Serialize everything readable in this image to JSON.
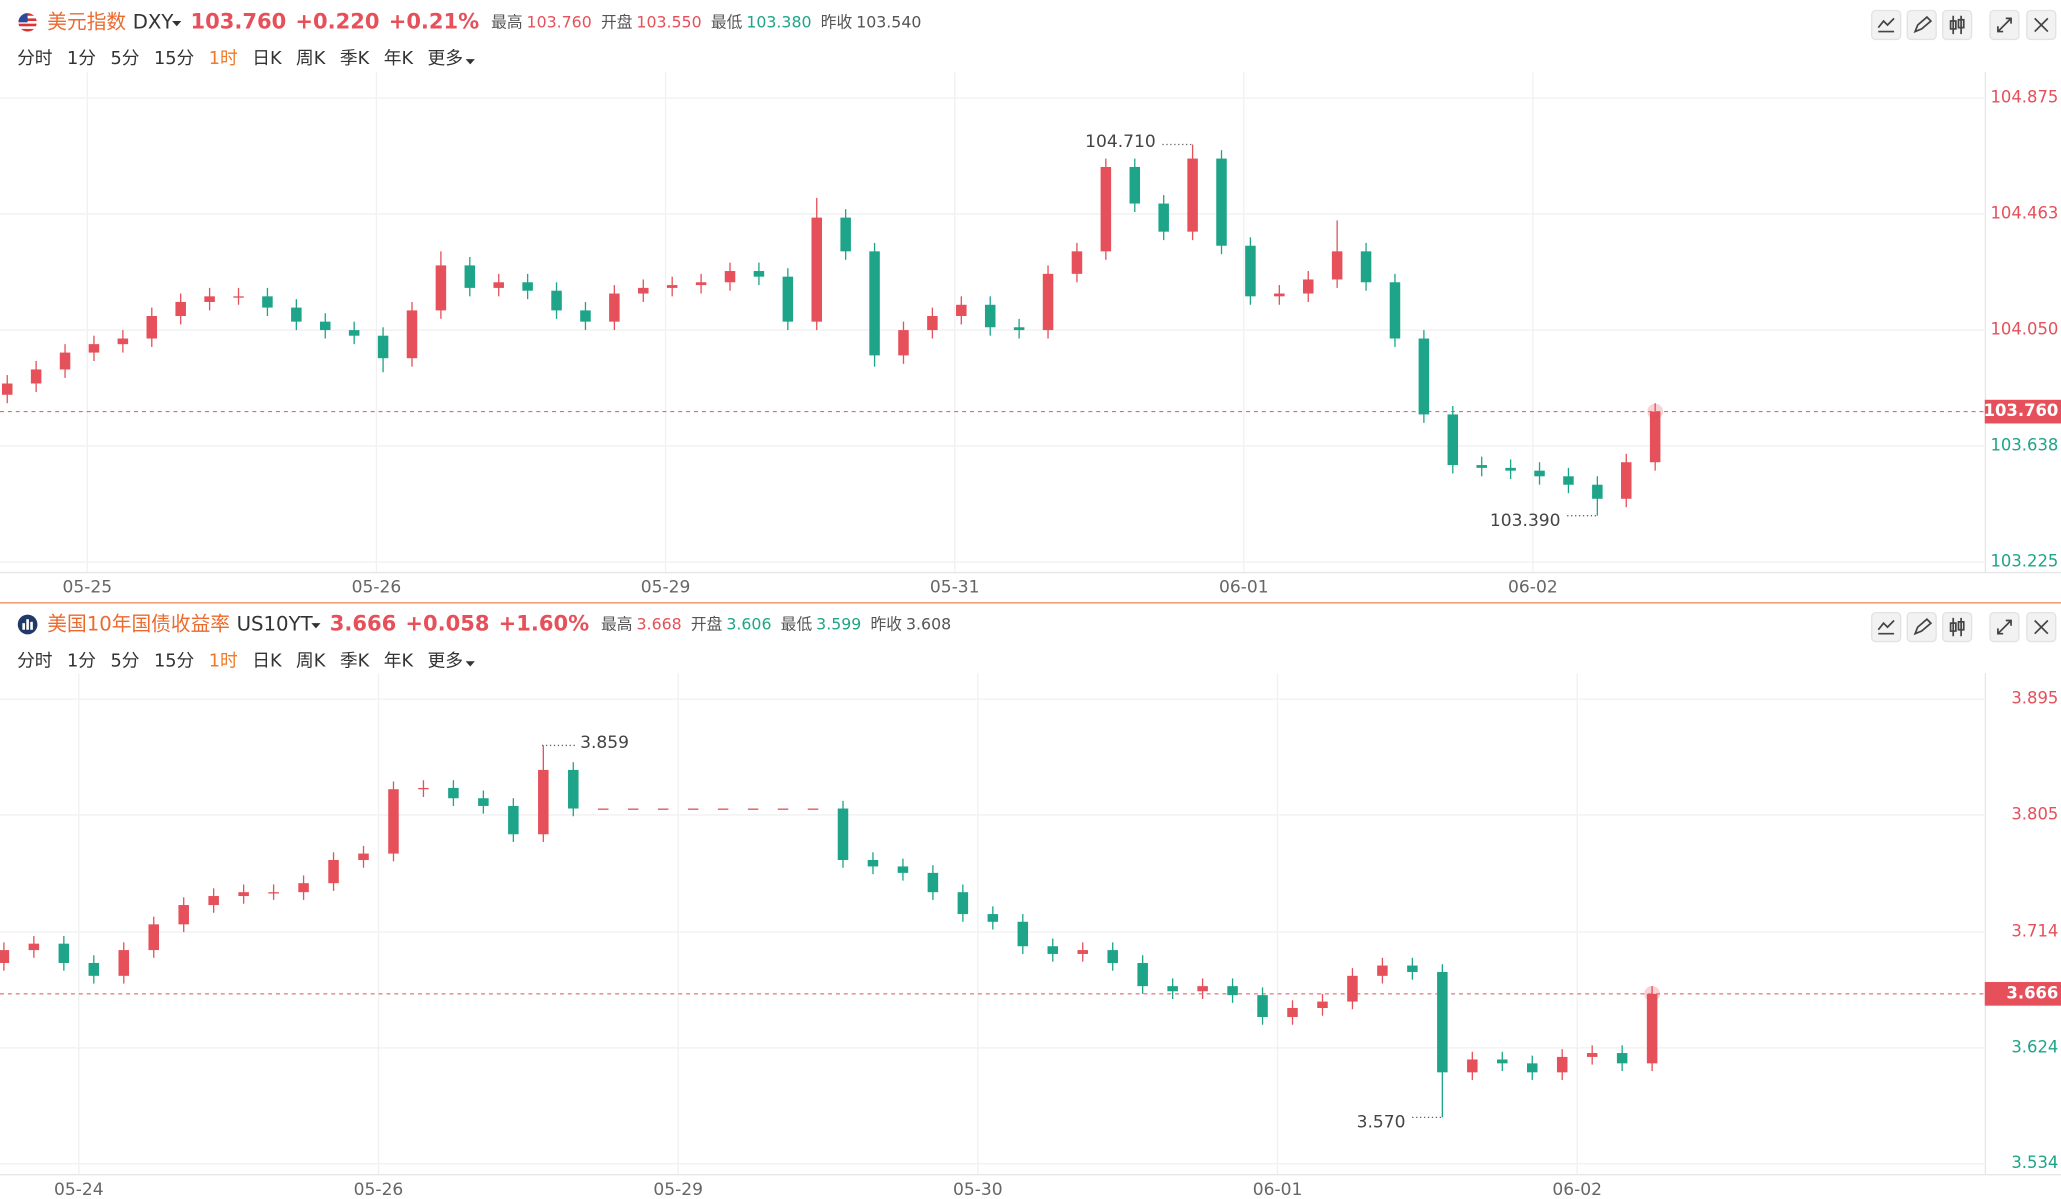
{
  "headers": [
    {
      "name": "美元指数",
      "symbol": "DXY",
      "price": "103.760",
      "change": "+0.220",
      "pct": "+0.21%",
      "stats": [
        {
          "label": "最高",
          "value": "103.760"
        },
        {
          "label": "开盘",
          "value": "103.550"
        },
        {
          "label": "最低",
          "value": "103.380"
        },
        {
          "label": "昨收",
          "value": "103.540"
        }
      ]
    },
    {
      "name": "美国10年国债收益率",
      "symbol": "US10YT",
      "price": "3.666",
      "change": "+0.058",
      "pct": "+1.60%",
      "stats": [
        {
          "label": "最高",
          "value": "3.668"
        },
        {
          "label": "开盘",
          "value": "3.606"
        },
        {
          "label": "最低",
          "value": "3.599"
        },
        {
          "label": "昨收",
          "value": "3.608"
        }
      ]
    }
  ],
  "tabs": [
    "分时",
    "1分",
    "5分",
    "15分",
    "1时",
    "日K",
    "周K",
    "季K",
    "年K",
    "更多"
  ],
  "active_tab": "1时",
  "chart_data": [
    {
      "type": "candlestick",
      "up_color": "#e5505a",
      "down_color": "#1ea589",
      "grid": true,
      "xlim": [
        -0.25,
        68.4
      ],
      "xticks": [
        {
          "value": 2.77,
          "label": "05-25"
        },
        {
          "value": 12.77,
          "label": "05-26"
        },
        {
          "value": 22.77,
          "label": "05-29"
        },
        {
          "value": 32.77,
          "label": "05-31"
        },
        {
          "value": 42.77,
          "label": "06-01"
        },
        {
          "value": 52.77,
          "label": "06-02"
        }
      ],
      "ylim": [
        103.19,
        104.92
      ],
      "yticks": [
        104.875,
        104.463,
        {
          "value": 104.05,
          "label": "104.050"
        },
        103.638,
        103.225
      ],
      "last": {
        "value": 103.76,
        "label": "103.760"
      },
      "max_label": {
        "value": 104.71,
        "label": "104.710"
      },
      "min_label": {
        "value": 103.39,
        "label": "103.390"
      },
      "open": [
        103.82,
        103.86,
        103.91,
        103.97,
        104.0,
        104.02,
        104.1,
        104.15,
        104.17,
        104.17,
        104.13,
        104.08,
        104.05,
        104.03,
        103.95,
        104.12,
        104.28,
        104.2,
        104.22,
        104.19,
        104.12,
        104.08,
        104.18,
        104.2,
        104.21,
        104.22,
        104.26,
        104.24,
        104.08,
        104.45,
        104.33,
        103.96,
        104.05,
        104.1,
        104.14,
        104.06,
        104.05,
        104.25,
        104.33,
        104.63,
        104.5,
        104.4,
        104.66,
        104.35,
        104.17,
        104.18,
        104.23,
        104.33,
        104.22,
        104.02,
        103.75,
        103.57,
        103.56,
        103.55,
        103.53,
        103.5,
        103.45,
        103.58
      ],
      "high": [
        103.89,
        103.94,
        104.0,
        104.03,
        104.05,
        104.13,
        104.18,
        104.2,
        104.2,
        104.2,
        104.16,
        104.11,
        104.08,
        104.06,
        104.15,
        104.33,
        104.31,
        104.25,
        104.25,
        104.22,
        104.15,
        104.21,
        104.23,
        104.24,
        104.25,
        104.29,
        104.29,
        104.27,
        104.52,
        104.48,
        104.36,
        104.08,
        104.13,
        104.17,
        104.17,
        104.09,
        104.28,
        104.36,
        104.66,
        104.66,
        104.53,
        104.71,
        104.69,
        104.38,
        104.21,
        104.26,
        104.44,
        104.36,
        104.25,
        104.05,
        103.78,
        103.6,
        103.59,
        103.58,
        103.56,
        103.53,
        103.61,
        103.79
      ],
      "low": [
        103.79,
        103.83,
        103.88,
        103.94,
        103.97,
        103.99,
        104.07,
        104.12,
        104.14,
        104.1,
        104.05,
        104.02,
        104.0,
        103.9,
        103.92,
        104.09,
        104.17,
        104.17,
        104.16,
        104.09,
        104.05,
        104.05,
        104.15,
        104.17,
        104.18,
        104.19,
        104.21,
        104.05,
        104.05,
        104.3,
        103.92,
        103.93,
        104.02,
        104.07,
        104.03,
        104.02,
        104.02,
        104.22,
        104.3,
        104.47,
        104.37,
        104.37,
        104.32,
        104.14,
        104.14,
        104.15,
        104.2,
        104.19,
        103.99,
        103.72,
        103.54,
        103.53,
        103.52,
        103.5,
        103.47,
        103.39,
        103.42,
        103.55
      ],
      "close": [
        103.86,
        103.91,
        103.97,
        104.0,
        104.02,
        104.1,
        104.15,
        104.17,
        104.17,
        104.13,
        104.08,
        104.05,
        104.03,
        103.95,
        104.12,
        104.28,
        104.2,
        104.22,
        104.19,
        104.12,
        104.08,
        104.18,
        104.2,
        104.21,
        104.22,
        104.26,
        104.24,
        104.08,
        104.45,
        104.33,
        103.96,
        104.05,
        104.1,
        104.14,
        104.06,
        104.05,
        104.25,
        104.33,
        104.63,
        104.5,
        104.4,
        104.66,
        104.35,
        104.17,
        104.18,
        104.23,
        104.33,
        104.22,
        104.02,
        103.75,
        103.57,
        103.56,
        103.55,
        103.53,
        103.5,
        103.45,
        103.58,
        103.76
      ]
    },
    {
      "type": "candlestick",
      "up_color": "#e5505a",
      "down_color": "#1ea589",
      "grid": true,
      "xlim": [
        -0.13,
        66.1
      ],
      "xticks": [
        {
          "value": 2.5,
          "label": "05-24"
        },
        {
          "value": 12.5,
          "label": "05-26"
        },
        {
          "value": 22.5,
          "label": "05-29"
        },
        {
          "value": 32.5,
          "label": "05-30"
        },
        {
          "value": 42.5,
          "label": "06-01"
        },
        {
          "value": 52.5,
          "label": "06-02"
        }
      ],
      "ylim": [
        3.526,
        3.905
      ],
      "yticks": [
        3.895,
        3.805,
        3.714,
        3.624,
        3.534
      ],
      "last": {
        "value": 3.666,
        "label": "3.666"
      },
      "max_label": {
        "value": 3.859,
        "label": "3.859"
      },
      "min_label": {
        "value": 3.57,
        "label": "3.570"
      },
      "open": [
        3.69,
        3.7,
        3.705,
        3.69,
        3.68,
        3.7,
        3.72,
        3.735,
        3.742,
        3.745,
        3.745,
        3.752,
        3.77,
        3.775,
        3.825,
        3.826,
        3.818,
        3.812,
        3.79,
        3.84,
        3.81,
        3.81,
        3.81,
        3.81,
        3.81,
        3.81,
        3.81,
        3.81,
        3.81,
        3.77,
        3.765,
        3.76,
        3.745,
        3.728,
        3.722,
        3.703,
        3.697,
        3.7,
        3.69,
        3.672,
        3.668,
        3.672,
        3.665,
        3.648,
        3.655,
        3.66,
        3.68,
        3.688,
        3.683,
        3.605,
        3.615,
        3.612,
        3.605,
        3.617,
        3.62,
        3.612
      ],
      "high": [
        3.706,
        3.711,
        3.711,
        3.696,
        3.706,
        3.726,
        3.741,
        3.748,
        3.751,
        3.751,
        3.758,
        3.776,
        3.781,
        3.831,
        3.832,
        3.832,
        3.824,
        3.818,
        3.859,
        3.846,
        3.81,
        3.81,
        3.81,
        3.81,
        3.81,
        3.81,
        3.81,
        3.81,
        3.816,
        3.776,
        3.771,
        3.766,
        3.751,
        3.734,
        3.728,
        3.709,
        3.706,
        3.706,
        3.696,
        3.678,
        3.678,
        3.678,
        3.671,
        3.661,
        3.666,
        3.686,
        3.694,
        3.694,
        3.689,
        3.621,
        3.621,
        3.618,
        3.623,
        3.626,
        3.626,
        3.672
      ],
      "low": [
        3.684,
        3.694,
        3.684,
        3.674,
        3.674,
        3.694,
        3.714,
        3.729,
        3.736,
        3.739,
        3.739,
        3.746,
        3.764,
        3.769,
        3.819,
        3.812,
        3.806,
        3.784,
        3.784,
        3.804,
        3.81,
        3.81,
        3.81,
        3.81,
        3.81,
        3.81,
        3.81,
        3.81,
        3.764,
        3.759,
        3.754,
        3.739,
        3.722,
        3.716,
        3.697,
        3.691,
        3.691,
        3.684,
        3.666,
        3.662,
        3.662,
        3.659,
        3.642,
        3.642,
        3.649,
        3.654,
        3.674,
        3.677,
        3.57,
        3.599,
        3.606,
        3.599,
        3.599,
        3.611,
        3.606,
        3.606
      ],
      "close": [
        3.7,
        3.705,
        3.69,
        3.68,
        3.7,
        3.72,
        3.735,
        3.742,
        3.745,
        3.745,
        3.752,
        3.77,
        3.775,
        3.825,
        3.826,
        3.818,
        3.812,
        3.79,
        3.84,
        3.81,
        3.81,
        3.81,
        3.81,
        3.81,
        3.81,
        3.81,
        3.81,
        3.81,
        3.77,
        3.765,
        3.76,
        3.745,
        3.728,
        3.722,
        3.703,
        3.697,
        3.7,
        3.69,
        3.672,
        3.668,
        3.672,
        3.665,
        3.648,
        3.655,
        3.66,
        3.68,
        3.688,
        3.683,
        3.605,
        3.615,
        3.612,
        3.605,
        3.617,
        3.62,
        3.612,
        3.666
      ]
    }
  ]
}
